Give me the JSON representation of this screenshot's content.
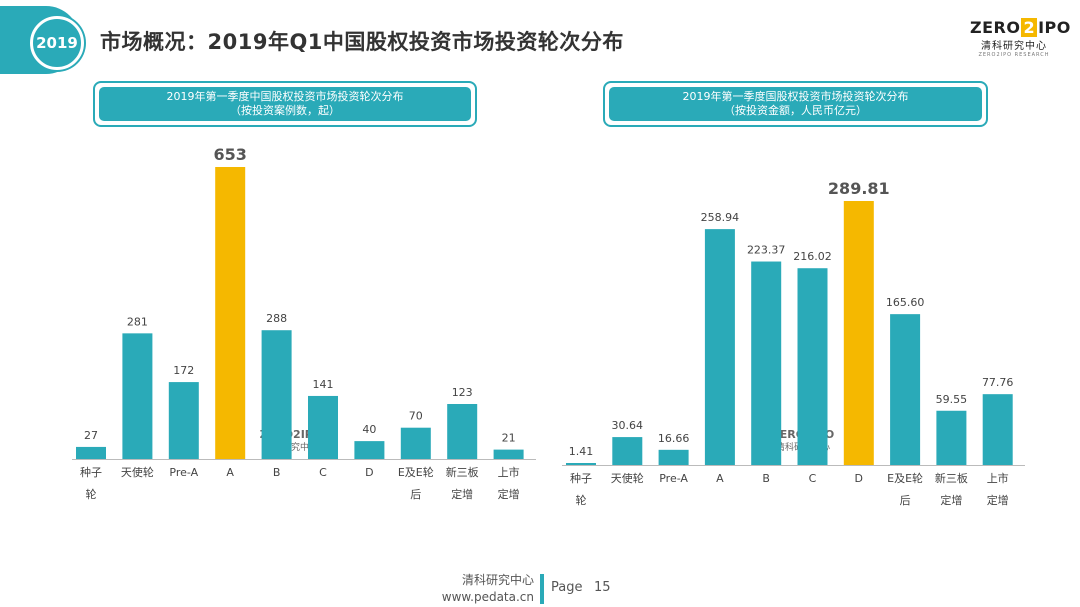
{
  "header": {
    "year": "2019",
    "title": "市场概况：2019年Q1中国股权投资市场投资轮次分布",
    "logo": {
      "brand_left": "ZERO",
      "brand_mid": "2",
      "brand_right": "IPO",
      "sub": "清科研究中心",
      "tiny": "ZERO2IPO RESEARCH"
    }
  },
  "colors": {
    "teal": "#2aaab8",
    "highlight": "#f5b800",
    "axis": "#bbbbbb"
  },
  "chart_data": [
    {
      "type": "bar",
      "title": "2019年第一季度中国股权投资市场投资轮次分布",
      "subtitle": "（按投资案例数，起）",
      "categories": [
        [
          "种子",
          "轮"
        ],
        [
          "天使轮"
        ],
        [
          "Pre-A"
        ],
        [
          "A"
        ],
        [
          "B"
        ],
        [
          "C"
        ],
        [
          "D"
        ],
        [
          "E及E轮",
          "后"
        ],
        [
          "新三板",
          "定增"
        ],
        [
          "上市",
          "定增"
        ]
      ],
      "values": [
        27,
        281,
        172,
        653,
        288,
        141,
        40,
        70,
        123,
        21
      ],
      "labels": [
        "27",
        "281",
        "172",
        "653",
        "288",
        "141",
        "40",
        "70",
        "123",
        "21"
      ],
      "highlight_index": 3,
      "ylim": [
        0,
        653
      ],
      "watermark": {
        "brand_left": "ZERO",
        "brand_mid": "2",
        "brand_right": "IPO",
        "sub": "清科研究中心"
      }
    },
    {
      "type": "bar",
      "title": "2019年第一季度国股权投资市场投资轮次分布",
      "subtitle": "（按投资金额，人民币亿元）",
      "categories": [
        [
          "种子",
          "轮"
        ],
        [
          "天使轮"
        ],
        [
          "Pre-A"
        ],
        [
          "A"
        ],
        [
          "B"
        ],
        [
          "C"
        ],
        [
          "D"
        ],
        [
          "E及E轮",
          "后"
        ],
        [
          "新三板",
          "定增"
        ],
        [
          "上市",
          "定增"
        ]
      ],
      "values": [
        1.41,
        30.64,
        16.66,
        258.94,
        223.37,
        216.02,
        289.81,
        165.6,
        59.55,
        77.76
      ],
      "labels": [
        "1.41",
        "30.64",
        "16.66",
        "258.94",
        "223.37",
        "216.02",
        "289.81",
        "165.60",
        "59.55",
        "77.76"
      ],
      "highlight_index": 6,
      "ylim": [
        0,
        289.81
      ],
      "watermark": {
        "brand_left": "ZERO",
        "brand_mid": "2",
        "brand_right": "IPO",
        "sub": "清科研究中心"
      }
    }
  ],
  "footer": {
    "org": "清科研究中心",
    "url": "www.pedata.cn",
    "page_label": "Page",
    "page_number": "15"
  }
}
